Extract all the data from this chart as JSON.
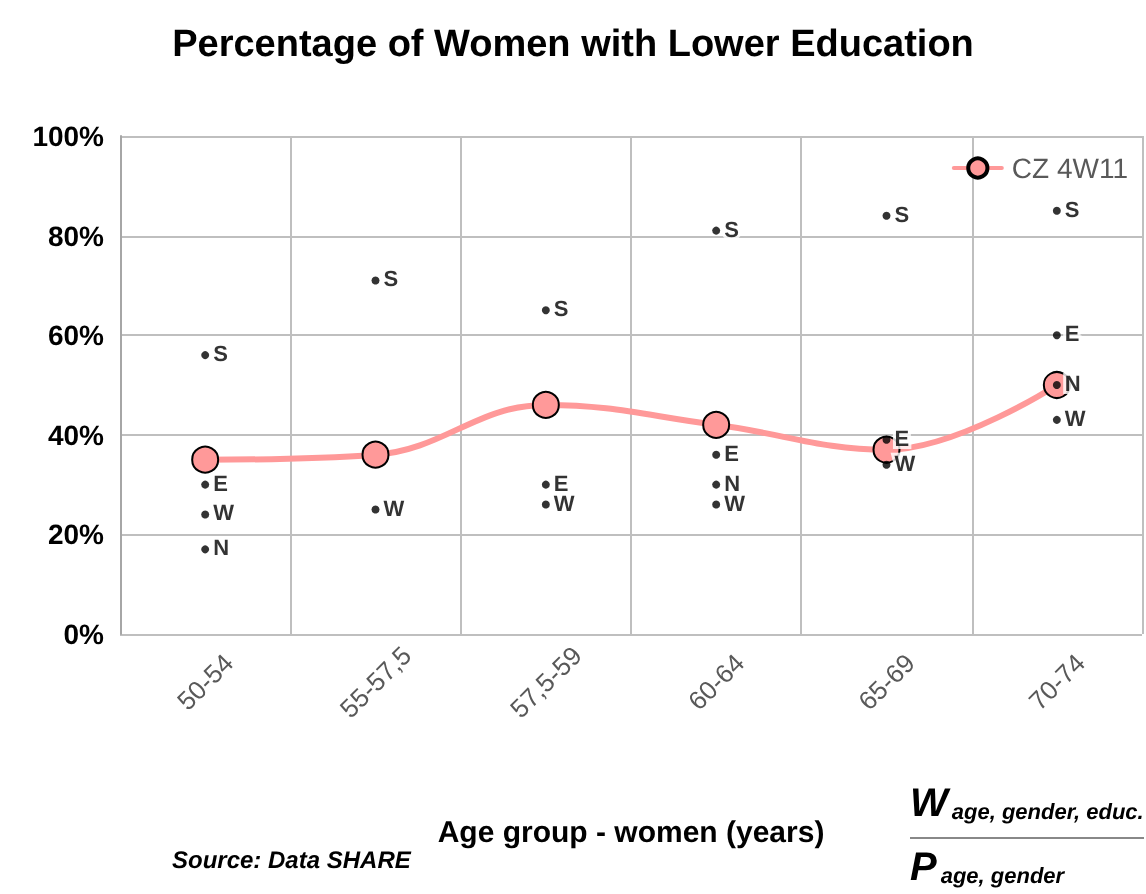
{
  "chart_data": {
    "type": "line",
    "title": "Percentage of Women with Lower Education",
    "xlabel": "Age group - women (years)",
    "categories": [
      "50-54",
      "55-57,5",
      "57,5-59",
      "60-64",
      "65-69",
      "70-74"
    ],
    "ylim": [
      0,
      100
    ],
    "yticks": [
      {
        "value": 0,
        "label": "0%"
      },
      {
        "value": 20,
        "label": "20%"
      },
      {
        "value": 40,
        "label": "40%"
      },
      {
        "value": 60,
        "label": "60%"
      },
      {
        "value": 80,
        "label": "80%"
      },
      {
        "value": 100,
        "label": "100%"
      }
    ],
    "series": [
      {
        "name": "CZ 4W11",
        "color": "#ff9999",
        "values": [
          35,
          36,
          46,
          42,
          37,
          50
        ],
        "marker": "circle"
      },
      {
        "name": "S",
        "type": "scatter",
        "color": "#000000",
        "marker": "circle",
        "values": [
          56,
          71,
          65,
          81,
          84,
          85
        ]
      },
      {
        "name": "E",
        "type": "scatter",
        "color": "#000000",
        "marker": "circle",
        "values": [
          30,
          null,
          30,
          36,
          39,
          60
        ]
      },
      {
        "name": "W",
        "type": "scatter",
        "color": "#000000",
        "marker": "circle",
        "values": [
          24,
          25,
          26,
          26,
          34,
          43
        ]
      },
      {
        "name": "N",
        "type": "scatter",
        "color": "#000000",
        "marker": "circle",
        "values": [
          17,
          null,
          null,
          30,
          null,
          50
        ]
      }
    ],
    "grid": true,
    "legend": "top right",
    "annotations": [
      "Source: Data SHARE",
      "W$_{age, gender, educ.}$",
      "P$_{age, gender}$"
    ]
  }
}
